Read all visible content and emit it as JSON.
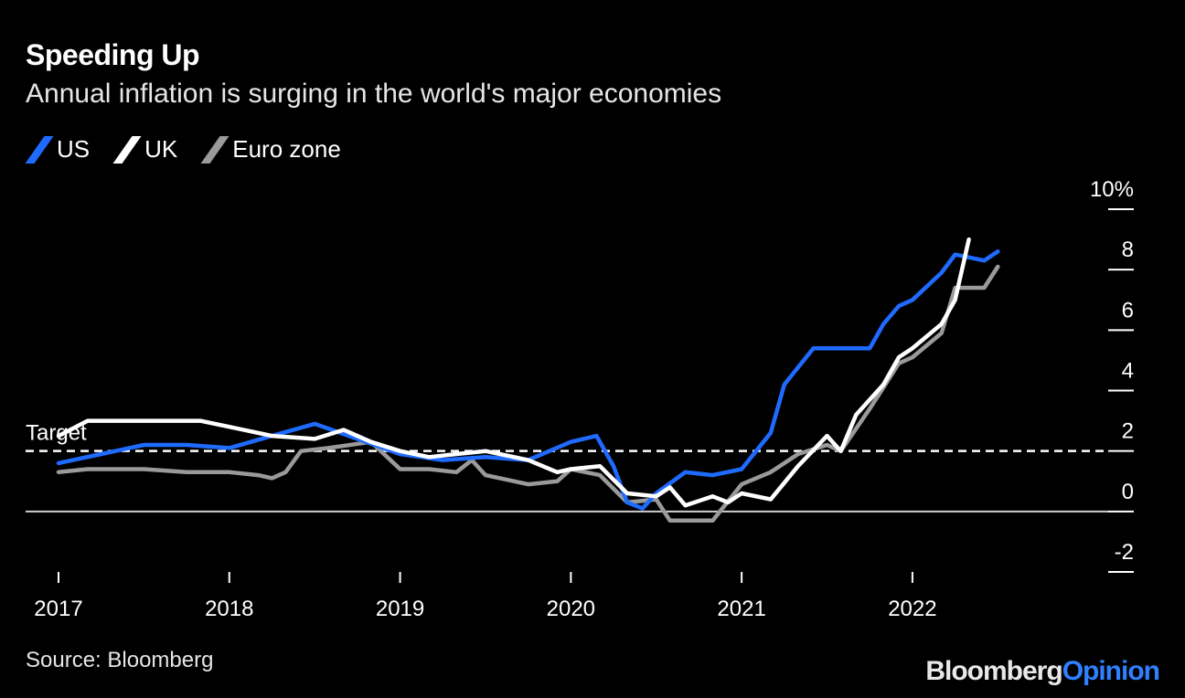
{
  "chart_data": {
    "type": "line",
    "title": "Speeding Up",
    "subtitle": "Annual inflation is surging in the world's major economies",
    "y_unit_label": "10%",
    "ylim": [
      -2,
      10
    ],
    "y_ticks": [
      -2,
      0,
      2,
      4,
      6,
      8,
      10
    ],
    "y_tick_labels": [
      "-2",
      "0",
      "2",
      "4",
      "6",
      "8",
      "10%"
    ],
    "x_ticks": [
      2017,
      2018,
      2019,
      2020,
      2021,
      2022
    ],
    "x_tick_labels": [
      "2017",
      "2018",
      "2019",
      "2020",
      "2021",
      "2022"
    ],
    "xlim": [
      2017.0,
      2022.75
    ],
    "target": {
      "label": "Target",
      "value": 2.0
    },
    "legend": [
      "US",
      "UK",
      "Euro zone"
    ],
    "series": [
      {
        "name": "US",
        "color": "#1f6bff",
        "points": [
          [
            2017.0,
            1.6
          ],
          [
            2017.25,
            1.9
          ],
          [
            2017.5,
            2.2
          ],
          [
            2017.75,
            2.2
          ],
          [
            2018.0,
            2.1
          ],
          [
            2018.25,
            2.5
          ],
          [
            2018.5,
            2.9
          ],
          [
            2018.75,
            2.4
          ],
          [
            2019.0,
            1.9
          ],
          [
            2019.25,
            1.7
          ],
          [
            2019.5,
            1.8
          ],
          [
            2019.75,
            1.7
          ],
          [
            2020.0,
            2.3
          ],
          [
            2020.15,
            2.5
          ],
          [
            2020.25,
            1.5
          ],
          [
            2020.33,
            0.3
          ],
          [
            2020.42,
            0.1
          ],
          [
            2020.5,
            0.6
          ],
          [
            2020.67,
            1.3
          ],
          [
            2020.83,
            1.2
          ],
          [
            2021.0,
            1.4
          ],
          [
            2021.17,
            2.6
          ],
          [
            2021.25,
            4.2
          ],
          [
            2021.42,
            5.4
          ],
          [
            2021.58,
            5.4
          ],
          [
            2021.75,
            5.4
          ],
          [
            2021.83,
            6.2
          ],
          [
            2021.92,
            6.8
          ],
          [
            2022.0,
            7.0
          ],
          [
            2022.17,
            7.9
          ],
          [
            2022.25,
            8.5
          ],
          [
            2022.42,
            8.3
          ],
          [
            2022.5,
            8.6
          ]
        ]
      },
      {
        "name": "UK",
        "color": "#ffffff",
        "points": [
          [
            2017.0,
            2.5
          ],
          [
            2017.17,
            3.0
          ],
          [
            2017.42,
            3.0
          ],
          [
            2017.83,
            3.0
          ],
          [
            2018.0,
            2.8
          ],
          [
            2018.25,
            2.5
          ],
          [
            2018.5,
            2.4
          ],
          [
            2018.67,
            2.7
          ],
          [
            2018.83,
            2.3
          ],
          [
            2019.0,
            2.0
          ],
          [
            2019.17,
            1.8
          ],
          [
            2019.33,
            1.9
          ],
          [
            2019.5,
            2.0
          ],
          [
            2019.75,
            1.7
          ],
          [
            2019.92,
            1.3
          ],
          [
            2020.0,
            1.4
          ],
          [
            2020.17,
            1.5
          ],
          [
            2020.33,
            0.6
          ],
          [
            2020.5,
            0.5
          ],
          [
            2020.58,
            0.8
          ],
          [
            2020.67,
            0.2
          ],
          [
            2020.83,
            0.5
          ],
          [
            2020.92,
            0.3
          ],
          [
            2021.0,
            0.6
          ],
          [
            2021.17,
            0.4
          ],
          [
            2021.33,
            1.5
          ],
          [
            2021.5,
            2.5
          ],
          [
            2021.58,
            2.0
          ],
          [
            2021.67,
            3.2
          ],
          [
            2021.83,
            4.2
          ],
          [
            2021.92,
            5.1
          ],
          [
            2022.0,
            5.4
          ],
          [
            2022.17,
            6.2
          ],
          [
            2022.25,
            7.0
          ],
          [
            2022.33,
            9.0
          ]
        ]
      },
      {
        "name": "Euro zone",
        "color": "#9a9a9a",
        "points": [
          [
            2017.0,
            1.3
          ],
          [
            2017.17,
            1.4
          ],
          [
            2017.33,
            1.4
          ],
          [
            2017.5,
            1.4
          ],
          [
            2017.75,
            1.3
          ],
          [
            2018.0,
            1.3
          ],
          [
            2018.17,
            1.2
          ],
          [
            2018.25,
            1.1
          ],
          [
            2018.33,
            1.3
          ],
          [
            2018.42,
            2.0
          ],
          [
            2018.58,
            2.1
          ],
          [
            2018.83,
            2.3
          ],
          [
            2019.0,
            1.4
          ],
          [
            2019.17,
            1.4
          ],
          [
            2019.33,
            1.3
          ],
          [
            2019.42,
            1.7
          ],
          [
            2019.5,
            1.2
          ],
          [
            2019.75,
            0.9
          ],
          [
            2019.92,
            1.0
          ],
          [
            2020.0,
            1.4
          ],
          [
            2020.17,
            1.2
          ],
          [
            2020.33,
            0.3
          ],
          [
            2020.5,
            0.4
          ],
          [
            2020.58,
            -0.3
          ],
          [
            2020.67,
            -0.3
          ],
          [
            2020.83,
            -0.3
          ],
          [
            2021.0,
            0.9
          ],
          [
            2021.17,
            1.3
          ],
          [
            2021.33,
            1.9
          ],
          [
            2021.5,
            2.2
          ],
          [
            2021.58,
            2.0
          ],
          [
            2021.75,
            3.4
          ],
          [
            2021.83,
            4.1
          ],
          [
            2021.92,
            4.9
          ],
          [
            2022.0,
            5.1
          ],
          [
            2022.17,
            5.9
          ],
          [
            2022.25,
            7.4
          ],
          [
            2022.42,
            7.4
          ],
          [
            2022.5,
            8.1
          ]
        ]
      }
    ],
    "source": "Source: Bloomberg",
    "brand_part1": "Bloomberg",
    "brand_part2": "Opinion"
  }
}
